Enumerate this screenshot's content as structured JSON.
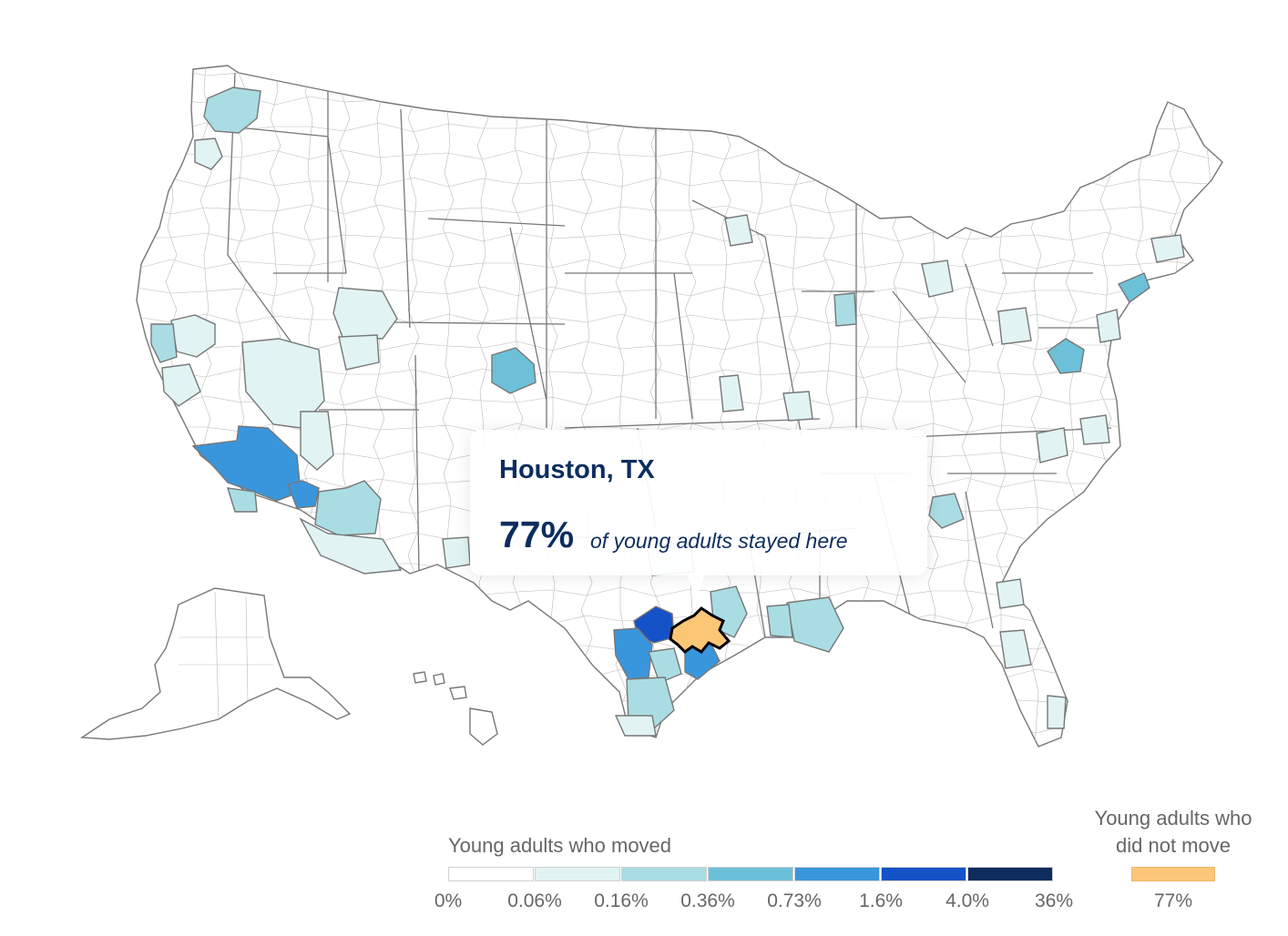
{
  "tooltip": {
    "title": "Houston, TX",
    "value": "77%",
    "caption": "of young adults stayed here"
  },
  "legend": {
    "moved_title": "Young adults who moved",
    "stayed_title_line1": "Young adults who",
    "stayed_title_line2": "did not move",
    "bins": [
      {
        "color": "#ffffff"
      },
      {
        "color": "#e1f3f3"
      },
      {
        "color": "#a9dde3"
      },
      {
        "color": "#6cc1d9"
      },
      {
        "color": "#3996dc"
      },
      {
        "color": "#1552c8"
      },
      {
        "color": "#0c2d5e"
      }
    ],
    "ticks": [
      "0%",
      "0.06%",
      "0.16%",
      "0.36%",
      "0.73%",
      "1.6%",
      "4.0%",
      "36%"
    ],
    "stayed_color": "#fcc677",
    "stayed_value": "77%"
  },
  "highlight": {
    "name": "Houston, TX",
    "color": "#fcc677"
  }
}
